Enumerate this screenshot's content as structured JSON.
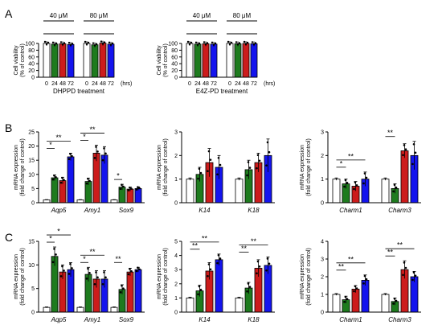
{
  "panels": {
    "A": "A",
    "B": "B",
    "C": "C"
  },
  "colors": {
    "control": "#ffffff",
    "t24": "#1e7b1e",
    "t48": "#cc1c1c",
    "t72": "#1414ee",
    "edge": "#000000",
    "dot": "#000000"
  },
  "chart_data": [
    {
      "id": "A-left",
      "panel": "A",
      "type": "bar",
      "ylabel": [
        "Cell viability",
        "(% of control)"
      ],
      "ylim": [
        0,
        100
      ],
      "yticks": [
        0,
        20,
        40,
        60,
        80,
        100
      ],
      "groups": [
        {
          "label": "40 μM",
          "values": [
            100,
            98,
            99,
            97
          ]
        },
        {
          "label": "80 μM",
          "values": [
            100,
            96,
            101,
            98
          ]
        }
      ],
      "xticks": [
        "0",
        "24",
        "48",
        "72",
        "0",
        "24",
        "48",
        "72"
      ],
      "xunit": "(hrs)",
      "xlabel": "DHPPD treatment"
    },
    {
      "id": "A-right",
      "panel": "A",
      "type": "bar",
      "ylabel": [
        "Cell viability",
        "(% of control)"
      ],
      "ylim": [
        0,
        100
      ],
      "yticks": [
        0,
        20,
        40,
        60,
        80,
        100
      ],
      "groups": [
        {
          "label": "40 μM",
          "values": [
            100,
            98,
            99,
            98
          ]
        },
        {
          "label": "80 μM",
          "values": [
            100,
            99,
            100,
            99
          ]
        }
      ],
      "xticks": [
        "0",
        "24",
        "48",
        "72",
        "0",
        "24",
        "48",
        "72"
      ],
      "xunit": "(hrs)",
      "xlabel": "E4Z-PD treatment"
    },
    {
      "id": "B-left",
      "panel": "B",
      "type": "bar",
      "ylabel": [
        "mRNA expression",
        "(fold change of control)"
      ],
      "ylim": [
        0,
        25
      ],
      "yticks": [
        0,
        5,
        10,
        15,
        20,
        25
      ],
      "genes": [
        {
          "label": "Aqp5",
          "values": [
            1,
            8.8,
            7.8,
            16.2
          ],
          "errors": [
            0.1,
            1.0,
            1.2,
            1.3
          ]
        },
        {
          "label": "Amy1",
          "values": [
            1,
            7.5,
            17.5,
            16.8
          ],
          "errors": [
            0.1,
            1.2,
            2.8,
            3.0
          ]
        },
        {
          "label": "Sox9",
          "values": [
            1,
            5.5,
            4.8,
            5.0
          ],
          "errors": [
            0.1,
            1.0,
            0.7,
            0.6
          ]
        }
      ],
      "significance": [
        "*",
        "**",
        "*",
        "**",
        "*"
      ]
    },
    {
      "id": "B-mid",
      "panel": "B",
      "type": "bar",
      "ylabel": [
        "mRNA expression",
        "(fold change of control)"
      ],
      "ylim": [
        0,
        3
      ],
      "yticks": [
        0,
        1,
        2,
        3
      ],
      "genes": [
        {
          "label": "K14",
          "values": [
            1,
            1.2,
            1.7,
            1.5
          ],
          "errors": [
            0.05,
            0.3,
            0.6,
            0.5
          ]
        },
        {
          "label": "K18",
          "values": [
            1,
            1.4,
            1.7,
            2.0
          ],
          "errors": [
            0.05,
            0.4,
            0.4,
            0.7
          ]
        }
      ],
      "significance": []
    },
    {
      "id": "B-right",
      "panel": "B",
      "type": "bar",
      "ylabel": [
        "mRNA expression",
        "(fold change of control)"
      ],
      "ylim": [
        0,
        3
      ],
      "yticks": [
        0,
        1,
        2,
        3
      ],
      "genes": [
        {
          "label": "Charm1",
          "values": [
            1,
            0.8,
            0.7,
            1.0
          ],
          "errors": [
            0.05,
            0.2,
            0.2,
            0.3
          ]
        },
        {
          "label": "Charm3",
          "values": [
            1,
            0.6,
            2.2,
            2.0
          ],
          "errors": [
            0.05,
            0.2,
            0.3,
            0.6
          ]
        }
      ],
      "significance": [
        "*",
        "**",
        "**"
      ]
    },
    {
      "id": "C-left",
      "panel": "C",
      "type": "bar",
      "ylabel": [
        "mRNA expression",
        "(fold change of control)"
      ],
      "ylim": [
        0,
        15
      ],
      "yticks": [
        0,
        5,
        10,
        15
      ],
      "genes": [
        {
          "label": "Aqp5",
          "values": [
            1,
            11.8,
            8.5,
            9.0
          ],
          "errors": [
            0.1,
            2.0,
            1.5,
            1.5
          ]
        },
        {
          "label": "Amy1",
          "values": [
            1,
            8.0,
            7.0,
            7.0
          ],
          "errors": [
            0.1,
            1.5,
            1.8,
            1.8
          ]
        },
        {
          "label": "Sox9",
          "values": [
            1,
            4.8,
            8.5,
            9.0
          ],
          "errors": [
            0.1,
            1.0,
            0.8,
            0.5
          ]
        }
      ],
      "significance": [
        "*",
        "*",
        "*",
        "**",
        "**"
      ]
    },
    {
      "id": "C-mid",
      "panel": "C",
      "type": "bar",
      "ylabel": [
        "mRNA expression",
        "(fold change of control)"
      ],
      "ylim": [
        0,
        5
      ],
      "yticks": [
        0,
        1,
        2,
        3,
        4,
        5
      ],
      "genes": [
        {
          "label": "K14",
          "values": [
            1,
            1.5,
            2.9,
            3.7
          ],
          "errors": [
            0.05,
            0.4,
            0.6,
            0.4
          ]
        },
        {
          "label": "K18",
          "values": [
            1,
            1.7,
            3.1,
            3.3
          ],
          "errors": [
            0.05,
            0.4,
            0.6,
            0.6
          ]
        }
      ],
      "significance": [
        "**",
        "**",
        "**",
        "**"
      ]
    },
    {
      "id": "C-right",
      "panel": "C",
      "type": "bar",
      "ylabel": [
        "mRNA expression",
        "(fold change of control)"
      ],
      "ylim": [
        0,
        4
      ],
      "yticks": [
        0,
        1,
        2,
        3,
        4
      ],
      "genes": [
        {
          "label": "Charm1",
          "values": [
            1,
            0.7,
            1.3,
            1.8
          ],
          "errors": [
            0.05,
            0.2,
            0.2,
            0.3
          ]
        },
        {
          "label": "Charm3",
          "values": [
            1,
            0.6,
            2.4,
            2.0
          ],
          "errors": [
            0.05,
            0.2,
            0.5,
            0.3
          ]
        }
      ],
      "significance": [
        "**",
        "**",
        "**",
        "**"
      ]
    }
  ]
}
